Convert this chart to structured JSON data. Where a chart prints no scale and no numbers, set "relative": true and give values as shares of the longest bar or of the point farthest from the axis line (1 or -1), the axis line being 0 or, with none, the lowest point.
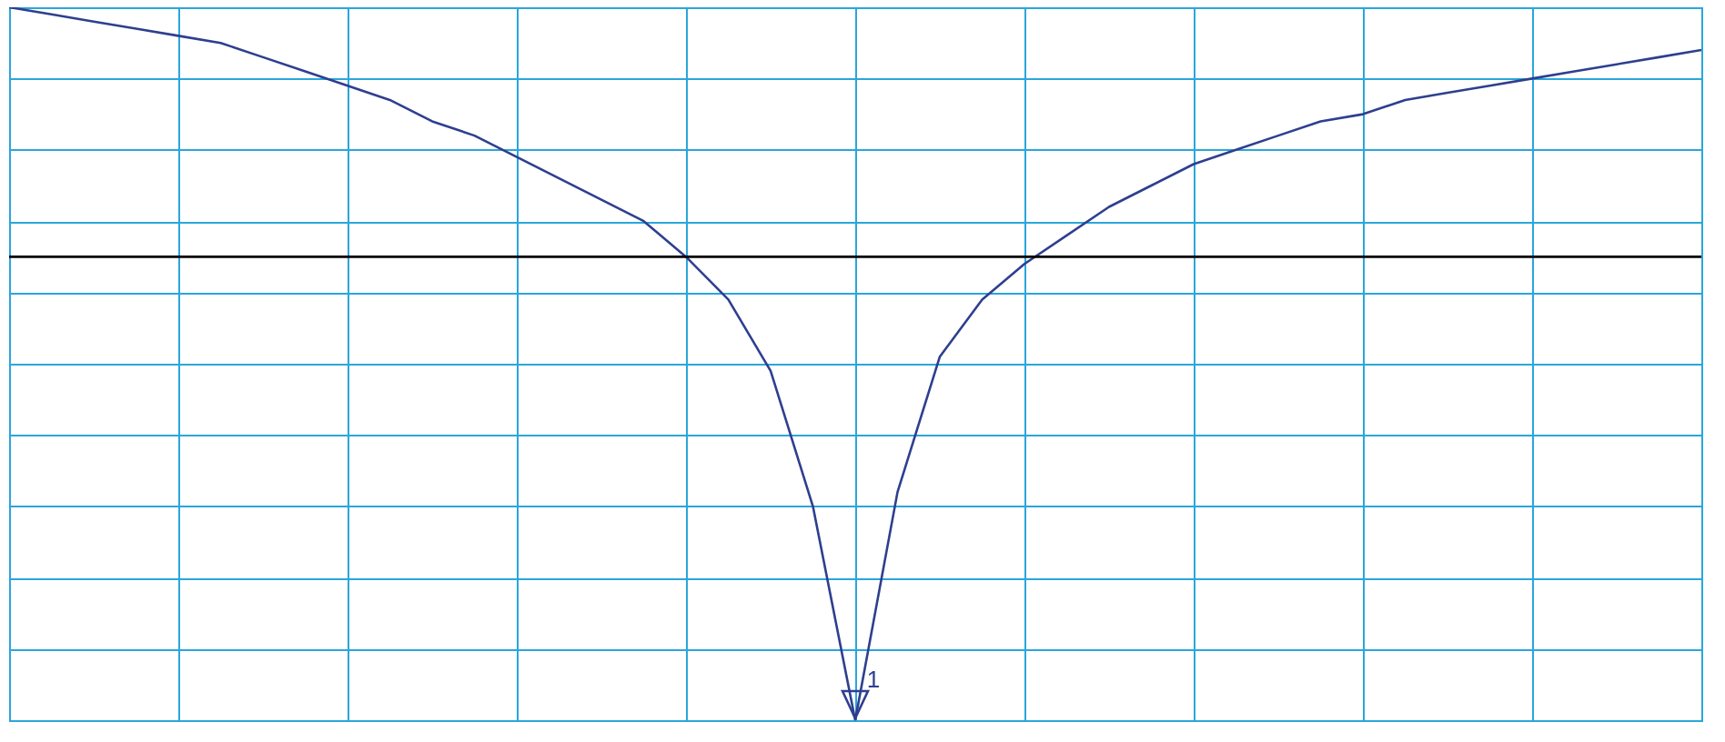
{
  "chart_data": {
    "type": "line",
    "relative": true,
    "grid": true,
    "tick_labels": false,
    "marker": "none",
    "line_style": "solid",
    "categories": [
      null,
      null,
      null,
      null,
      null,
      null,
      null,
      null,
      null,
      null,
      null,
      null,
      null,
      null,
      null,
      null,
      null,
      null,
      null,
      null,
      null,
      null,
      null,
      null,
      null,
      null,
      null,
      null,
      null,
      null,
      null,
      null,
      null,
      null,
      null,
      null,
      null,
      null,
      null,
      null,
      null
    ],
    "series": [
      {
        "color": "#2e3f8f",
        "values": [
          1.0,
          0.99,
          0.98,
          0.97,
          0.96,
          0.95,
          0.93,
          0.91,
          0.89,
          0.87,
          0.84,
          0.82,
          0.79,
          0.76,
          0.73,
          0.7,
          0.65,
          0.59,
          0.49,
          0.3,
          0.0,
          0.32,
          0.51,
          0.59,
          0.64,
          0.68,
          0.72,
          0.75,
          0.78,
          0.8,
          0.82,
          0.84,
          0.85,
          0.87,
          0.88,
          0.89,
          0.9,
          0.91,
          0.92,
          0.93,
          0.94
        ]
      }
    ],
    "ref_lines": [
      {
        "axis": "y",
        "value": 0.65,
        "color": "#000000"
      }
    ],
    "annotations": [
      "1"
    ]
  }
}
